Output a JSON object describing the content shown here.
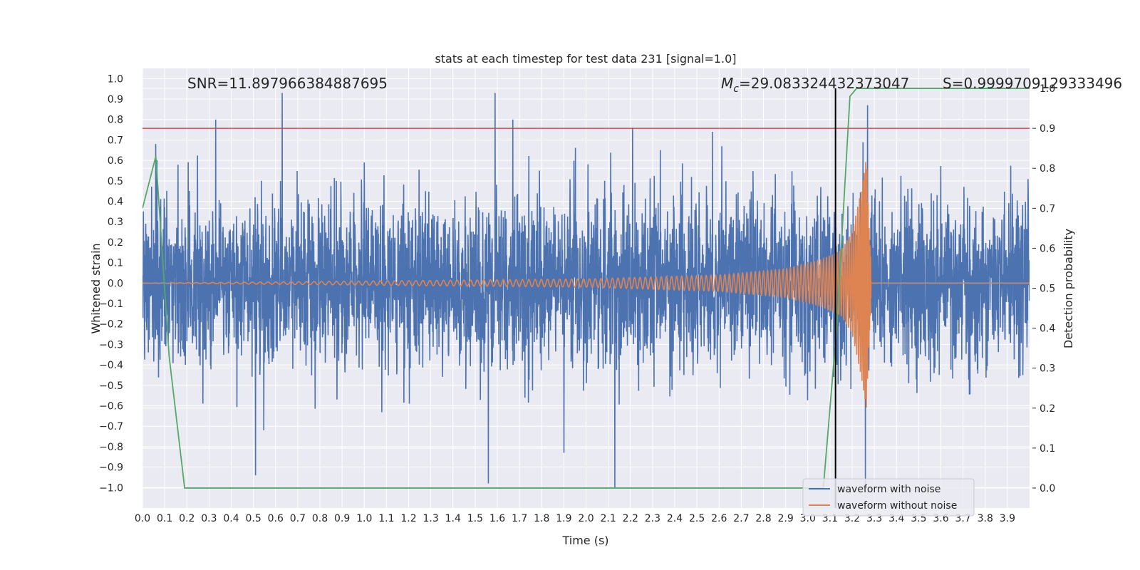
{
  "chart_data": {
    "type": "line",
    "title": "stats at each timestep for test data 231 [signal=1.0]",
    "xlabel": "Time (s)",
    "ylabel": "Whitened strain",
    "ylabel_right": "Detection probability",
    "xlim": [
      0.0,
      4.0
    ],
    "ylim": [
      -1.1,
      1.05
    ],
    "ylim_right": [
      -0.05,
      1.05
    ],
    "x_ticks": [
      "0.0",
      "0.1",
      "0.2",
      "0.3",
      "0.4",
      "0.5",
      "0.6",
      "0.7",
      "0.8",
      "0.9",
      "1.0",
      "1.1",
      "1.2",
      "1.3",
      "1.4",
      "1.5",
      "1.6",
      "1.7",
      "1.8",
      "1.9",
      "2.0",
      "2.1",
      "2.2",
      "2.3",
      "2.4",
      "2.5",
      "2.6",
      "2.7",
      "2.8",
      "2.9",
      "3.0",
      "3.1",
      "3.2",
      "3.3",
      "3.4",
      "3.5",
      "3.6",
      "3.7",
      "3.8",
      "3.9"
    ],
    "y_ticks": [
      "1.0",
      "0.9",
      "0.8",
      "0.7",
      "0.6",
      "0.5",
      "0.4",
      "0.3",
      "0.2",
      "0.1",
      "0.0",
      "−0.1",
      "−0.2",
      "−0.3",
      "−0.4",
      "−0.5",
      "−0.6",
      "−0.7",
      "−0.8",
      "−0.9",
      "−1.0"
    ],
    "y_ticks_right": [
      "1.0",
      "0.9",
      "0.8",
      "0.7",
      "0.6",
      "0.5",
      "0.4",
      "0.3",
      "0.2",
      "0.1",
      "0.0"
    ],
    "annotations": {
      "snr": "SNR=11.897966384887695",
      "mc_symbol": "M",
      "mc_subscript": "c",
      "mc_value": "=29.083324432373047",
      "s": "S=0.9999709129333496"
    },
    "threshold_right": 0.9,
    "merger_time": 3.125,
    "grid": true,
    "legend_position": "lower-right",
    "legend": [
      "waveform with noise",
      "waveform without noise"
    ],
    "colors": {
      "noisy": "#4c72b0",
      "clean": "#dd8452",
      "probability": "#55a868",
      "threshold": "#c44e52",
      "merger": "#000000",
      "plot_bg": "#eaeaf2",
      "grid": "#ffffff"
    },
    "series": [
      {
        "name": "waveform with noise",
        "axis": "left",
        "sampling": "noise, 4096 samples over 0–4 s",
        "peaks": [
          [
            0.06,
            0.68
          ],
          [
            0.33,
            0.8
          ],
          [
            0.63,
            0.93
          ],
          [
            1.59,
            0.93
          ],
          [
            1.67,
            0.8
          ],
          [
            2.21,
            0.76
          ],
          [
            2.57,
            0.74
          ],
          [
            3.27,
            0.87
          ],
          [
            0.51,
            -0.94
          ],
          [
            1.56,
            -0.98
          ],
          [
            2.13,
            -1.0
          ],
          [
            3.26,
            -1.0
          ],
          [
            1.9,
            -0.83
          ]
        ]
      },
      {
        "name": "waveform without noise",
        "axis": "left",
        "description_points": [
          [
            0.0,
            0.0
          ],
          [
            1.0,
            0.01
          ],
          [
            2.0,
            0.02
          ],
          [
            2.6,
            0.04
          ],
          [
            2.9,
            0.07
          ],
          [
            3.05,
            0.11
          ],
          [
            3.15,
            0.16
          ],
          [
            3.2,
            0.25
          ],
          [
            3.24,
            0.45
          ],
          [
            3.265,
            0.62
          ],
          [
            3.275,
            0.3
          ],
          [
            3.29,
            0.0
          ],
          [
            4.0,
            0.0
          ]
        ]
      },
      {
        "name": "",
        "axis": "right",
        "x": [
          0.0,
          0.06,
          0.12,
          0.19,
          3.07,
          3.13,
          3.19,
          3.22,
          4.0
        ],
        "y": [
          0.7,
          0.83,
          0.33,
          0.0,
          0.0,
          0.4,
          0.98,
          1.0,
          1.0
        ]
      }
    ]
  }
}
